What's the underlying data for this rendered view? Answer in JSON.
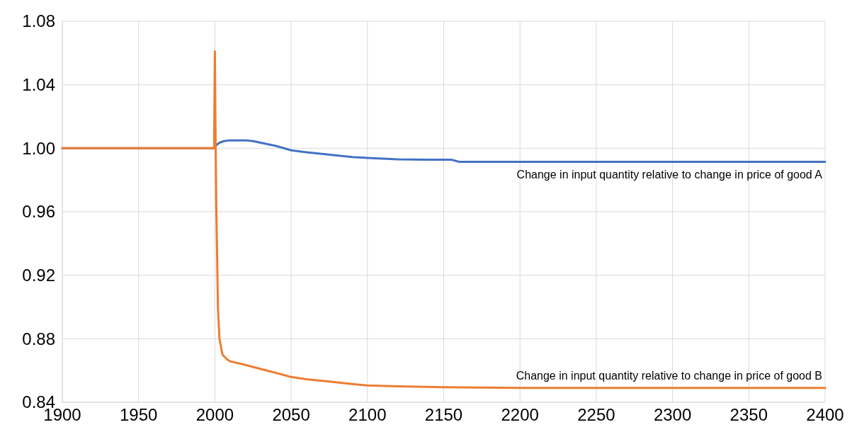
{
  "chart_data": {
    "type": "line",
    "xlim": [
      1900,
      2400
    ],
    "xticks": [
      1900,
      1950,
      2000,
      2050,
      2100,
      2150,
      2200,
      2250,
      2300,
      2350,
      2400
    ],
    "ylim": [
      0.84,
      1.08
    ],
    "yticks": [
      {
        "value": 0.84,
        "label": "0.84"
      },
      {
        "value": 0.88,
        "label": "0.88"
      },
      {
        "value": 0.92,
        "label": "0.92"
      },
      {
        "value": 0.96,
        "label": "0.96"
      },
      {
        "value": 1.0,
        "label": "1.00"
      },
      {
        "value": 1.04,
        "label": "1.04"
      },
      {
        "value": 1.08,
        "label": "1.08"
      }
    ],
    "grid": true,
    "marker": "none",
    "line_style": "solid",
    "series": [
      {
        "name": "Change in input quantity relative to change in price of good A",
        "color": "#4472c4",
        "x": [
          1900,
          2000,
          2001,
          2003,
          2006,
          2010,
          2020,
          2025,
          2030,
          2040,
          2050,
          2060,
          2070,
          2080,
          2090,
          2100,
          2110,
          2120,
          2140,
          2155,
          2160,
          2200,
          2300,
          2400
        ],
        "values": [
          1.0,
          1.0,
          1.002,
          1.0035,
          1.0045,
          1.005,
          1.005,
          1.0045,
          1.0035,
          1.0015,
          0.9987,
          0.9975,
          0.9965,
          0.9955,
          0.9945,
          0.9939,
          0.9935,
          0.993,
          0.9928,
          0.9928,
          0.9915,
          0.9915,
          0.9915,
          0.9915
        ]
      },
      {
        "name": "Change in input quantity relative to change in price of good B",
        "color": "#ed7d31",
        "x": [
          1900,
          1999.5,
          2000,
          2000.5,
          2001,
          2002,
          2003,
          2005,
          2008,
          2010,
          2020,
          2030,
          2040,
          2050,
          2060,
          2075,
          2090,
          2100,
          2120,
          2150,
          2200,
          2300,
          2400
        ],
        "values": [
          1.0,
          1.0,
          1.061,
          1.0,
          0.96,
          0.9,
          0.88,
          0.87,
          0.867,
          0.8658,
          0.8635,
          0.861,
          0.8585,
          0.8559,
          0.8545,
          0.853,
          0.8515,
          0.8506,
          0.85,
          0.8495,
          0.849,
          0.849,
          0.849
        ]
      }
    ]
  }
}
